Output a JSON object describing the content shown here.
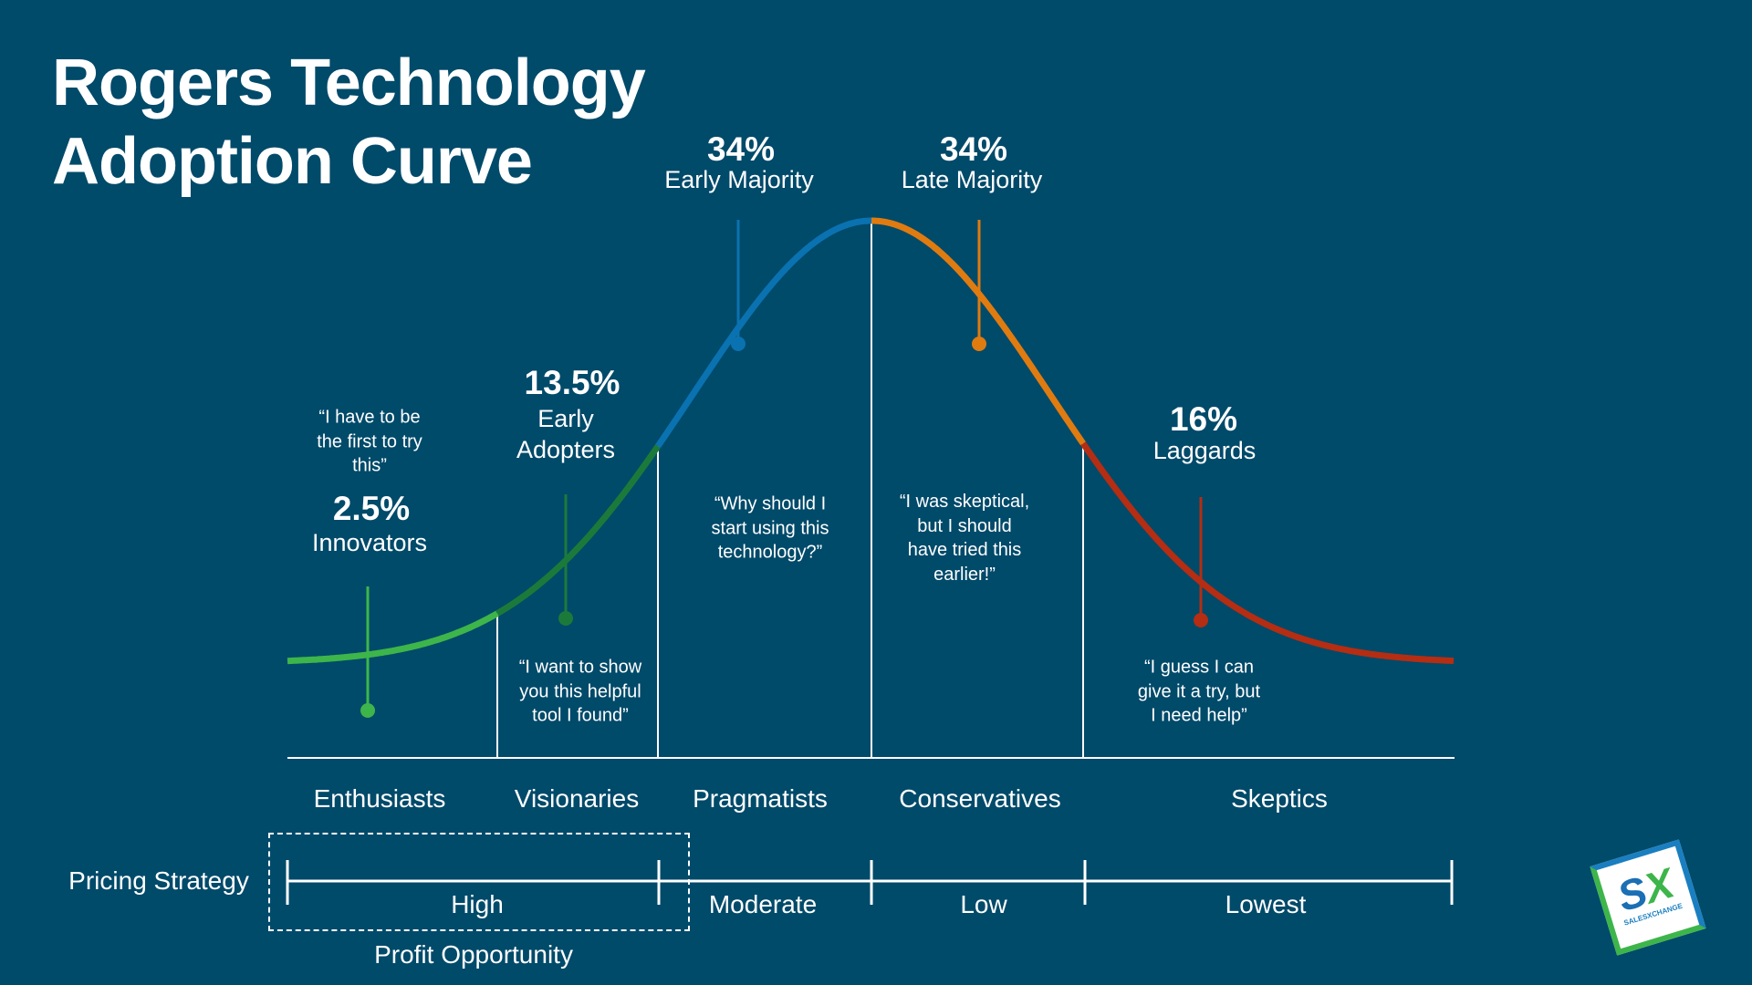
{
  "title": {
    "line1": "Rogers Technology",
    "line2": "Adoption Curve"
  },
  "colors": {
    "background": "#004a6a",
    "innovators": "#3db54a",
    "early_adopters": "#1b7a3a",
    "early_majority": "#0a72b0",
    "late_majority": "#e07b10",
    "laggards": "#b52d12"
  },
  "segments": [
    {
      "percent": "2.5%",
      "label": "Innovators",
      "quote": [
        "“I have to be",
        "the first to try",
        "this”"
      ]
    },
    {
      "percent": "13.5%",
      "label": [
        "Early",
        "Adopters"
      ],
      "quote": [
        "“I want to show",
        "you this helpful",
        "tool I found”"
      ]
    },
    {
      "percent": "34%",
      "label": "Early Majority",
      "quote": [
        "“Why should I",
        "start using this",
        "technology?”"
      ]
    },
    {
      "percent": "34%",
      "label": "Late Majority",
      "quote": [
        "“I was skeptical,",
        "but I should",
        "have tried this",
        "earlier!”"
      ]
    },
    {
      "percent": "16%",
      "label": "Laggards",
      "quote": [
        "“I guess I can",
        "give it a try, but",
        "I need help”"
      ]
    }
  ],
  "categories": [
    "Enthusiasts",
    "Visionaries",
    "Pragmatists",
    "Conservatives",
    "Skeptics"
  ],
  "pricing": {
    "label": "Pricing Strategy",
    "levels": [
      "High",
      "Moderate",
      "Low",
      "Lowest"
    ],
    "profit_label": "Profit Opportunity"
  },
  "logo": {
    "text": "SX",
    "subtext": "SALESXCHANGE"
  }
}
